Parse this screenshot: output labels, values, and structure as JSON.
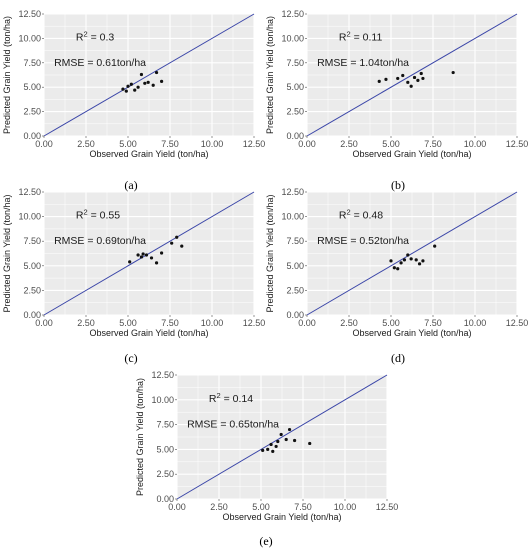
{
  "style": {
    "panel_bg": "#ebebeb",
    "grid_color": "#ffffff",
    "line_color": "#3b46a8",
    "point_color": "#111111"
  },
  "chart_data": [
    {
      "type": "scatter",
      "panel_label": "(a)",
      "xlabel": "Observed Grain Yield (ton/ha)",
      "ylabel": "Predicted Grain Yield (ton/ha)",
      "xlim": [
        0,
        12.5
      ],
      "ylim": [
        0,
        12.5
      ],
      "ticks": [
        "0.00",
        "2.50",
        "5.00",
        "7.50",
        "10.00",
        "12.50"
      ],
      "annotation": {
        "r2_label": "R",
        "r2_sup": "2",
        "r2_value": " =  0.3",
        "rmse": "RMSE = 0.61ton/ha"
      },
      "reference_line": {
        "name": "1:1 line",
        "from": [
          0,
          0
        ],
        "to": [
          12.5,
          12.5
        ]
      },
      "points": [
        [
          4.7,
          4.8
        ],
        [
          4.9,
          4.6
        ],
        [
          5.0,
          5.1
        ],
        [
          5.2,
          5.3
        ],
        [
          5.4,
          4.7
        ],
        [
          5.6,
          5.0
        ],
        [
          5.8,
          6.3
        ],
        [
          6.0,
          5.4
        ],
        [
          6.2,
          5.5
        ],
        [
          6.5,
          5.2
        ],
        [
          6.7,
          6.5
        ],
        [
          7.0,
          5.6
        ]
      ]
    },
    {
      "type": "scatter",
      "panel_label": "(b)",
      "xlabel": "Observed Grain Yield (ton/ha)",
      "ylabel": "Predicted Grain Yield (ton/ha)",
      "xlim": [
        0,
        12.5
      ],
      "ylim": [
        0,
        12.5
      ],
      "ticks": [
        "0.00",
        "2.50",
        "5.00",
        "7.50",
        "10.00",
        "12.50"
      ],
      "annotation": {
        "r2_label": "R",
        "r2_sup": "2",
        "r2_value": " = 0.11",
        "rmse": "RMSE = 1.04ton/ha"
      },
      "reference_line": {
        "name": "1:1 line",
        "from": [
          0,
          0
        ],
        "to": [
          12.5,
          12.5
        ]
      },
      "points": [
        [
          4.3,
          5.6
        ],
        [
          4.7,
          5.8
        ],
        [
          5.4,
          5.9
        ],
        [
          5.7,
          6.2
        ],
        [
          6.0,
          5.5
        ],
        [
          6.2,
          5.1
        ],
        [
          6.4,
          6.0
        ],
        [
          6.6,
          5.7
        ],
        [
          6.8,
          6.4
        ],
        [
          6.9,
          5.9
        ],
        [
          8.7,
          6.5
        ]
      ]
    },
    {
      "type": "scatter",
      "panel_label": "(c)",
      "xlabel": "Observed Grain Yield (ton/ha)",
      "ylabel": "Predicted Grain Yield (ton/ha)",
      "xlim": [
        0,
        12.5
      ],
      "ylim": [
        0,
        12.5
      ],
      "ticks": [
        "0.00",
        "2.50",
        "5.00",
        "7.50",
        "10.00",
        "12.50"
      ],
      "annotation": {
        "r2_label": "R",
        "r2_sup": "2",
        "r2_value": " = 0.55",
        "rmse": "RMSE = 0.69ton/ha"
      },
      "reference_line": {
        "name": "1:1 line",
        "from": [
          0,
          0
        ],
        "to": [
          12.5,
          12.5
        ]
      },
      "points": [
        [
          5.1,
          5.4
        ],
        [
          5.6,
          6.1
        ],
        [
          5.8,
          5.9
        ],
        [
          6.1,
          6.1
        ],
        [
          6.4,
          5.8
        ],
        [
          6.7,
          5.3
        ],
        [
          7.0,
          6.3
        ],
        [
          7.6,
          7.3
        ],
        [
          7.9,
          7.9
        ],
        [
          8.2,
          7.0
        ],
        [
          5.9,
          6.2
        ]
      ]
    },
    {
      "type": "scatter",
      "panel_label": "(d)",
      "xlabel": "Observed Grain Yield (ton/ha)",
      "ylabel": "Predicted Grain Yield (ton/ha)",
      "xlim": [
        0,
        12.5
      ],
      "ylim": [
        0,
        12.5
      ],
      "ticks": [
        "0.00",
        "2.50",
        "5.00",
        "7.50",
        "10.00",
        "12.50"
      ],
      "annotation": {
        "r2_label": "R",
        "r2_sup": "2",
        "r2_value": " = 0.48",
        "rmse": "RMSE = 0.52ton/ha"
      },
      "reference_line": {
        "name": "1:1 line",
        "from": [
          0,
          0
        ],
        "to": [
          12.5,
          12.5
        ]
      },
      "points": [
        [
          5.0,
          5.5
        ],
        [
          5.2,
          4.8
        ],
        [
          5.4,
          4.7
        ],
        [
          5.6,
          5.3
        ],
        [
          5.8,
          5.6
        ],
        [
          6.0,
          6.1
        ],
        [
          6.2,
          5.7
        ],
        [
          6.5,
          5.6
        ],
        [
          6.7,
          5.2
        ],
        [
          6.9,
          5.5
        ],
        [
          7.6,
          7.0
        ]
      ]
    },
    {
      "type": "scatter",
      "panel_label": "(e)",
      "xlabel": "Observed Grain Yield (ton/ha)",
      "ylabel": "Predicted Grain Yield (ton/ha)",
      "xlim": [
        0,
        12.5
      ],
      "ylim": [
        0,
        12.5
      ],
      "ticks": [
        "0.00",
        "2.50",
        "5.00",
        "7.50",
        "10.00",
        "12.50"
      ],
      "annotation": {
        "r2_label": "R",
        "r2_sup": "2",
        "r2_value": " = 0.14",
        "rmse": "RMSE = 0.65ton/ha"
      },
      "reference_line": {
        "name": "1:1 line",
        "from": [
          0,
          0
        ],
        "to": [
          12.5,
          12.5
        ]
      },
      "points": [
        [
          5.1,
          4.9
        ],
        [
          5.4,
          5.0
        ],
        [
          5.6,
          5.5
        ],
        [
          5.7,
          4.8
        ],
        [
          5.9,
          5.3
        ],
        [
          6.0,
          5.8
        ],
        [
          6.2,
          6.5
        ],
        [
          6.5,
          6.0
        ],
        [
          6.7,
          7.0
        ],
        [
          7.0,
          5.9
        ],
        [
          7.9,
          5.6
        ]
      ]
    }
  ]
}
